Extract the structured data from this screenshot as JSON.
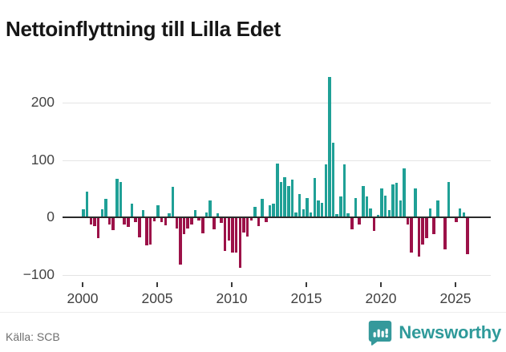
{
  "title": "Nettoinflyttning till Lilla Edet",
  "footer": {
    "source": "Källa: SCB",
    "brand": "Newsworthy"
  },
  "colors": {
    "positive": "#1FA096",
    "negative": "#9C1148",
    "zero_axis": "#2b2b2b",
    "gridline": "#e4e4e4",
    "brand_teal": "#2F9A9A"
  },
  "chart_data": {
    "type": "bar",
    "title": "Nettoinflyttning till Lilla Edet",
    "xlabel": "",
    "ylabel": "",
    "grid": true,
    "legend": false,
    "ylim": [
      -110,
      260
    ],
    "y_ticks": [
      200,
      100,
      0,
      -100
    ],
    "y_tick_labels": [
      "200",
      "100",
      "0",
      "−100"
    ],
    "x_tick_labels": [
      "2000",
      "2005",
      "2010",
      "2015",
      "2020",
      "2025"
    ],
    "x": [
      "2000Q1",
      "2000Q2",
      "2000Q3",
      "2000Q4",
      "2001Q1",
      "2001Q2",
      "2001Q3",
      "2001Q4",
      "2002Q1",
      "2002Q2",
      "2002Q3",
      "2002Q4",
      "2003Q1",
      "2003Q2",
      "2003Q3",
      "2003Q4",
      "2004Q1",
      "2004Q2",
      "2004Q3",
      "2004Q4",
      "2005Q1",
      "2005Q2",
      "2005Q3",
      "2005Q4",
      "2006Q1",
      "2006Q2",
      "2006Q3",
      "2006Q4",
      "2007Q1",
      "2007Q2",
      "2007Q3",
      "2007Q4",
      "2008Q1",
      "2008Q2",
      "2008Q3",
      "2008Q4",
      "2009Q1",
      "2009Q2",
      "2009Q3",
      "2009Q4",
      "2010Q1",
      "2010Q2",
      "2010Q3",
      "2010Q4",
      "2011Q1",
      "2011Q2",
      "2011Q3",
      "2011Q4",
      "2012Q1",
      "2012Q2",
      "2012Q3",
      "2012Q4",
      "2013Q1",
      "2013Q2",
      "2013Q3",
      "2013Q4",
      "2014Q1",
      "2014Q2",
      "2014Q3",
      "2014Q4",
      "2015Q1",
      "2015Q2",
      "2015Q3",
      "2015Q4",
      "2016Q1",
      "2016Q2",
      "2016Q3",
      "2016Q4",
      "2017Q1",
      "2017Q2",
      "2017Q3",
      "2017Q4",
      "2018Q1",
      "2018Q2",
      "2018Q3",
      "2018Q4",
      "2019Q1",
      "2019Q2",
      "2019Q3",
      "2019Q4",
      "2020Q1",
      "2020Q2",
      "2020Q3",
      "2020Q4",
      "2021Q1",
      "2021Q2",
      "2021Q3",
      "2021Q4",
      "2022Q1",
      "2022Q2",
      "2022Q3",
      "2022Q4",
      "2023Q1",
      "2023Q2",
      "2023Q3",
      "2023Q4",
      "2024Q1",
      "2024Q2",
      "2024Q3",
      "2024Q4",
      "2025Q1",
      "2025Q2",
      "2025Q3",
      "2025Q4"
    ],
    "values": [
      14,
      45,
      -12,
      -15,
      -37,
      14,
      32,
      -12,
      -23,
      67,
      61,
      -12,
      -17,
      24,
      -9,
      -35,
      13,
      -49,
      -48,
      -7,
      21,
      -9,
      -14,
      7,
      53,
      -19,
      -82,
      -30,
      -19,
      -12,
      12,
      -6,
      -28,
      9,
      29,
      -21,
      7,
      -10,
      -59,
      -40,
      -61,
      -61,
      -88,
      -26,
      -33,
      -5,
      18,
      -16,
      32,
      -8,
      21,
      24,
      94,
      61,
      70,
      54,
      66,
      9,
      40,
      14,
      34,
      9,
      69,
      30,
      25,
      93,
      245,
      130,
      5,
      37,
      92,
      7,
      -21,
      33,
      -12,
      55,
      36,
      16,
      -24,
      4,
      51,
      38,
      12,
      57,
      60,
      30,
      86,
      -12,
      -61,
      50,
      -69,
      -47,
      -37,
      15,
      -29,
      29,
      2,
      -56,
      61,
      2,
      -8,
      16,
      8,
      -65
    ]
  }
}
